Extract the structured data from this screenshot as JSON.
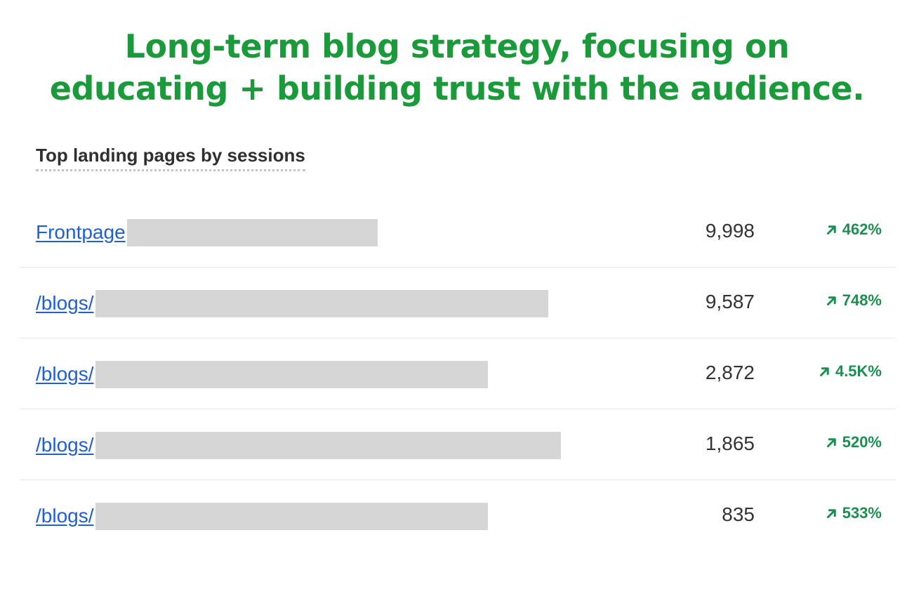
{
  "headline": {
    "line1": "Long-term blog strategy, focusing on",
    "line2": "educating + building trust with the audience."
  },
  "card": {
    "title": "Top landing pages by sessions",
    "rows": [
      {
        "page": "Frontpage",
        "sessions": "9,998",
        "change": "462%"
      },
      {
        "page": "/blogs/",
        "sessions": "9,587",
        "change": "748%"
      },
      {
        "page": "/blogs/",
        "sessions": "2,872",
        "change": "4.5K%"
      },
      {
        "page": "/blogs/",
        "sessions": "1,865",
        "change": "520%"
      },
      {
        "page": "/blogs/",
        "sessions": "835",
        "change": "533%"
      }
    ]
  },
  "icons": {
    "trend": "arrow-up-right-icon"
  },
  "colors": {
    "headline": "#1a9a3a",
    "link": "#1f5fd6",
    "positive": "#1a8f4f",
    "redaction": "#d6d6d6"
  }
}
